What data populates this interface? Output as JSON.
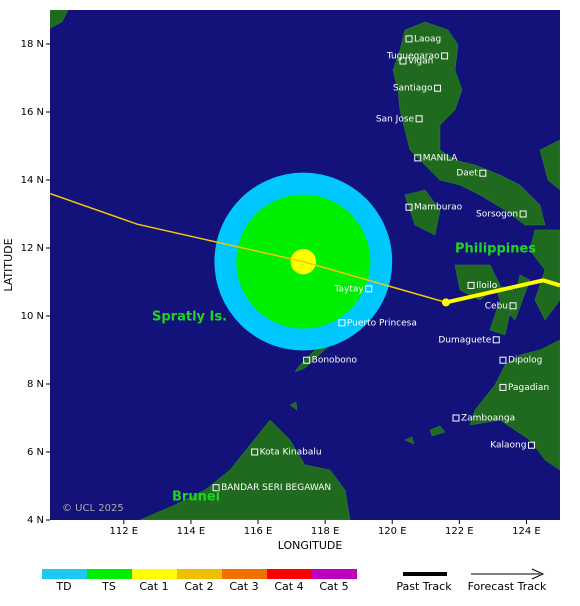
{
  "map": {
    "xlabel": "LONGITUDE",
    "ylabel": "LATITUDE",
    "xlim": [
      109.8,
      125
    ],
    "ylim": [
      4,
      19
    ],
    "xticks": [
      {
        "value": 112,
        "label": "112 E"
      },
      {
        "value": 114,
        "label": "114 E"
      },
      {
        "value": 116,
        "label": "116 E"
      },
      {
        "value": 118,
        "label": "118 E"
      },
      {
        "value": 120,
        "label": "120 E"
      },
      {
        "value": 122,
        "label": "122 E"
      },
      {
        "value": 124,
        "label": "124 E"
      }
    ],
    "yticks": [
      {
        "value": 4,
        "label": "4 N"
      },
      {
        "value": 6,
        "label": "6 N"
      },
      {
        "value": 8,
        "label": "8 N"
      },
      {
        "value": 10,
        "label": "10 N"
      },
      {
        "value": 12,
        "label": "12 N"
      },
      {
        "value": 14,
        "label": "14 N"
      },
      {
        "value": 16,
        "label": "16 N"
      },
      {
        "value": 18,
        "label": "18 N"
      }
    ],
    "regions": [
      "Philippines",
      "Spratly Is.",
      "Brunei"
    ],
    "copyright": "© UCL 2025",
    "cities": [
      {
        "name": "Laoag",
        "lon": 120.5,
        "lat": 18.15
      },
      {
        "name": "Tuguegarao",
        "lon": 121.56,
        "lat": 17.65
      },
      {
        "name": "Vigan",
        "lon": 120.32,
        "lat": 17.5
      },
      {
        "name": "Santiago",
        "lon": 121.35,
        "lat": 16.7
      },
      {
        "name": "San Jose",
        "lon": 120.8,
        "lat": 15.8
      },
      {
        "name": "MANILA",
        "lon": 120.76,
        "lat": 14.65
      },
      {
        "name": "Daet",
        "lon": 122.7,
        "lat": 14.2
      },
      {
        "name": "Mamburao",
        "lon": 120.5,
        "lat": 13.2
      },
      {
        "name": "Sorsogon",
        "lon": 123.9,
        "lat": 13.0
      },
      {
        "name": "Taytay",
        "lon": 119.3,
        "lat": 10.8
      },
      {
        "name": "Iloilo",
        "lon": 122.35,
        "lat": 10.9
      },
      {
        "name": "Cebu",
        "lon": 123.6,
        "lat": 10.3
      },
      {
        "name": "Puerto Princesa",
        "lon": 118.5,
        "lat": 9.8
      },
      {
        "name": "Dumaguete",
        "lon": 123.1,
        "lat": 9.3
      },
      {
        "name": "Bonobono",
        "lon": 117.45,
        "lat": 8.7
      },
      {
        "name": "Dipolog",
        "lon": 123.3,
        "lat": 8.7
      },
      {
        "name": "Pagadian",
        "lon": 123.3,
        "lat": 7.9
      },
      {
        "name": "Zamboanga",
        "lon": 121.9,
        "lat": 7.0
      },
      {
        "name": "Kalaong",
        "lon": 124.15,
        "lat": 6.2
      },
      {
        "name": "Kota Kinabalu",
        "lon": 115.9,
        "lat": 6.0
      },
      {
        "name": "BANDAR SERI BEGAWAN",
        "lon": 114.75,
        "lat": 4.95
      }
    ],
    "storm": {
      "lon": 117.35,
      "lat": 11.6,
      "wind_radii": [
        {
          "radius": 2.65,
          "color": "#00c8ff"
        },
        {
          "radius": 2.0,
          "color": "#00ee00"
        },
        {
          "radius": 0.38,
          "color": "#ffff00"
        }
      ]
    },
    "tracks": [
      {
        "name": "Past Track",
        "lon": [
          121.6,
          124.5,
          125
        ],
        "lat": [
          10.4,
          11.05,
          10.9
        ]
      },
      {
        "name": "Forecast Track",
        "lon": [
          121.6,
          117.35,
          112.4,
          109.8
        ],
        "lat": [
          10.4,
          11.6,
          12.7,
          13.6
        ]
      }
    ],
    "legend": [
      {
        "name": "TD",
        "color": "#1ec8f0"
      },
      {
        "name": "TS",
        "color": "#00ee00"
      },
      {
        "name": "Cat 1",
        "color": "#ffff00"
      },
      {
        "name": "Cat 2",
        "color": "#f0c000"
      },
      {
        "name": "Cat 3",
        "color": "#f07000"
      },
      {
        "name": "Cat 4",
        "color": "#ff0000"
      },
      {
        "name": "Cat 5",
        "color": "#c000c0"
      }
    ]
  }
}
